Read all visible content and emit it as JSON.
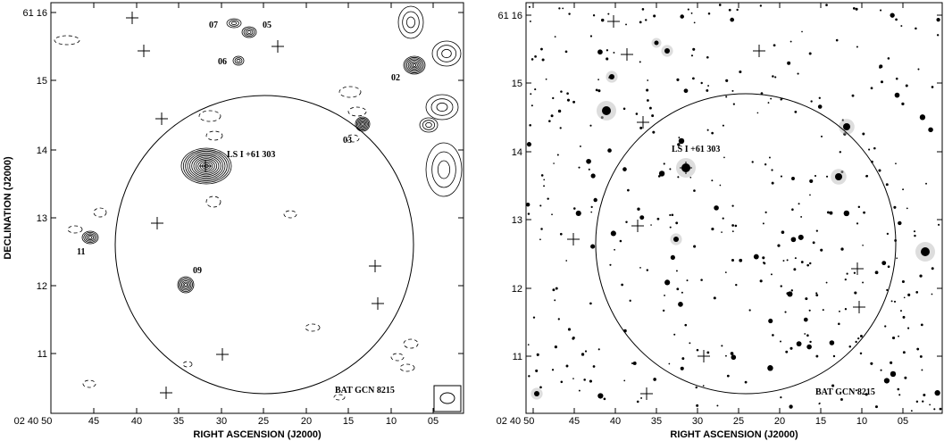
{
  "panels": [
    {
      "x_axis_label": "RIGHT ASCENSION (J2000)",
      "y_axis_label": "DECLINATION (J2000)",
      "x_tick_labels": [
        "02 40 50",
        "45",
        "40",
        "35",
        "30",
        "25",
        "20",
        "15",
        "10",
        "05"
      ],
      "y_tick_labels": [
        "61 16",
        "15",
        "14",
        "13",
        "12",
        "11"
      ],
      "annotations": [
        "07",
        "05",
        "06",
        "02",
        "03",
        "LS I +61 303",
        "11",
        "09",
        "BAT GCN 8215"
      ]
    },
    {
      "x_axis_label": "RIGHT ASCENSION (J2000)",
      "x_tick_labels": [
        "02 40 50",
        "45",
        "40",
        "35",
        "30",
        "25",
        "20",
        "15",
        "10",
        "05"
      ],
      "y_tick_labels": [
        "61 16",
        "15",
        "14",
        "13",
        "12",
        "11"
      ],
      "annotations": [
        "LS I +61 303",
        "BAT GCN 8215"
      ]
    }
  ]
}
